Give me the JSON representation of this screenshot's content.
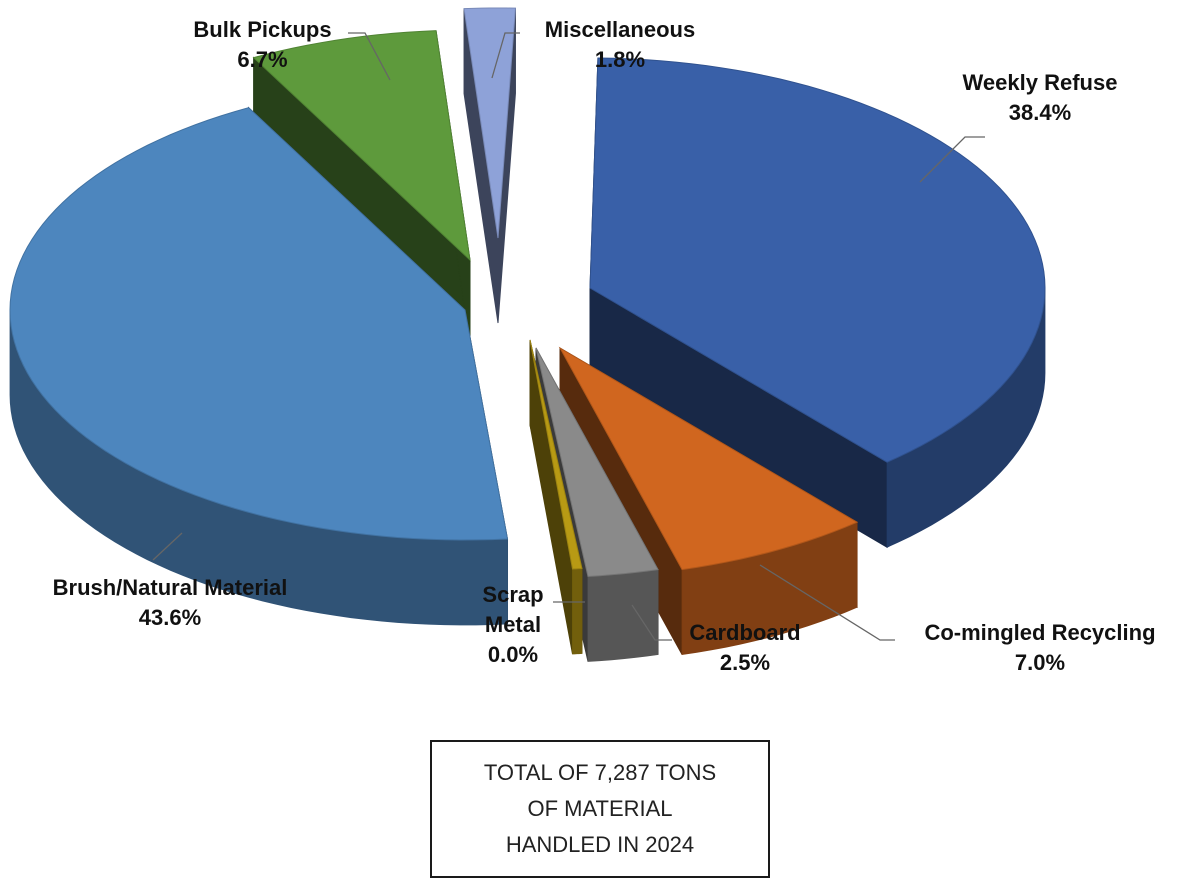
{
  "chart_data": {
    "type": "pie",
    "style": "3d-exploded",
    "slices": [
      {
        "label": "Weekly Refuse",
        "value": 38.4,
        "display": "38.4%",
        "color": "#3960a8"
      },
      {
        "label": "Co-mingled Recycling",
        "value": 7.0,
        "display": "7.0%",
        "color": "#d0661f"
      },
      {
        "label": "Cardboard",
        "value": 2.5,
        "display": "2.5%",
        "color": "#8a8a8a"
      },
      {
        "label": "Scrap Metal",
        "value": 0.0,
        "display": "0.0%",
        "color": "#b89a14"
      },
      {
        "label": "Brush/Natural Material",
        "value": 43.6,
        "display": "43.6%",
        "color": "#4d86be"
      },
      {
        "label": "Bulk Pickups",
        "value": 6.7,
        "display": "6.7%",
        "color": "#5e9a3c"
      },
      {
        "label": "Miscellaneous",
        "value": 1.8,
        "display": "1.8%",
        "color": "#8ea2d8"
      }
    ]
  },
  "labels": {
    "weekly_refuse": {
      "name": "Weekly Refuse",
      "pct": "38.4%"
    },
    "comingled": {
      "name": "Co-mingled Recycling",
      "pct": "7.0%"
    },
    "cardboard": {
      "name": "Cardboard",
      "pct": "2.5%"
    },
    "scrap_metal": {
      "name1": "Scrap",
      "name2": "Metal",
      "pct": "0.0%"
    },
    "brush": {
      "name": "Brush/Natural Material",
      "pct": "43.6%"
    },
    "bulk": {
      "name": "Bulk Pickups",
      "pct": "6.7%"
    },
    "misc": {
      "name": "Miscellaneous",
      "pct": "1.8%"
    }
  },
  "total_box": {
    "line1": "TOTAL OF 7,287 TONS",
    "line2": "OF MATERIAL",
    "line3": "HANDLED IN 2024"
  }
}
